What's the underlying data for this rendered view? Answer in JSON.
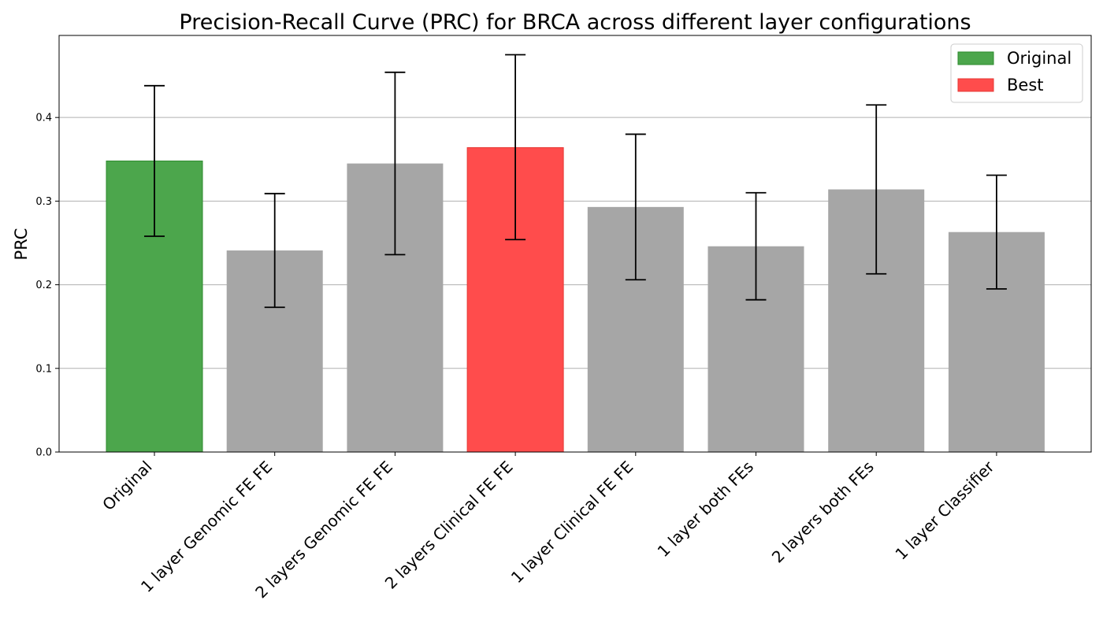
{
  "chart_data": {
    "type": "bar",
    "title": "Precision-Recall Curve (PRC) for BRCA across different layer configurations",
    "xlabel": "",
    "ylabel": "PRC",
    "ylim": [
      0,
      0.5
    ],
    "yticks": [
      "0.0",
      "0.1",
      "0.2",
      "0.3",
      "0.4"
    ],
    "grid": "y",
    "legend_position": "top-right",
    "categories": [
      "Original",
      "1 layer Genomic FE FE",
      "2 layers Genomic FE FE",
      "2 layers Clinical FE FE",
      "1 layer Clinical FE FE",
      "1 layer both FEs",
      "2 layers both FEs",
      "1 layer Classifier"
    ],
    "values": [
      0.348,
      0.241,
      0.345,
      0.364,
      0.293,
      0.246,
      0.314,
      0.263
    ],
    "error_low": [
      0.258,
      0.173,
      0.236,
      0.254,
      0.206,
      0.182,
      0.213,
      0.195
    ],
    "error_high": [
      0.438,
      0.309,
      0.454,
      0.475,
      0.38,
      0.31,
      0.415,
      0.331
    ],
    "bar_roles": [
      "original",
      "other",
      "other",
      "best",
      "other",
      "other",
      "other",
      "other"
    ],
    "colors": {
      "original": "#4ca64c",
      "original_edge": "#2e8b2e",
      "best": "#ff4c4c",
      "best_edge": "#e53935",
      "other": "#a6a6a6",
      "grid": "#b0b0b0"
    },
    "legend": [
      {
        "label": "Original",
        "role": "original"
      },
      {
        "label": "Best",
        "role": "best"
      }
    ]
  }
}
